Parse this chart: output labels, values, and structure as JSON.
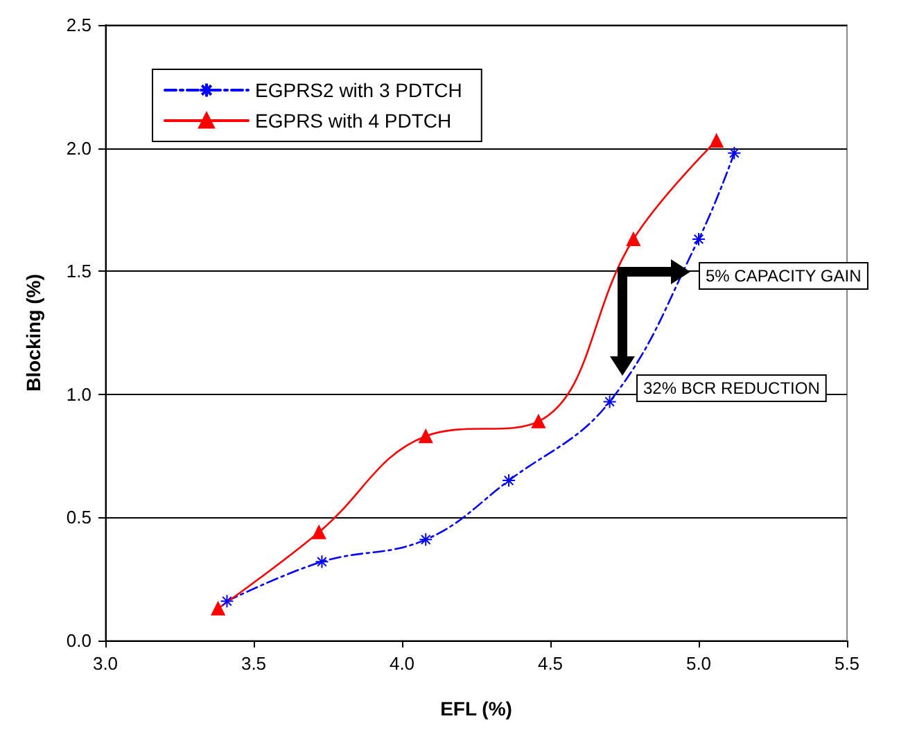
{
  "chart_data": {
    "type": "line",
    "xlabel": "EFL (%)",
    "ylabel": "Blocking (%)",
    "xlim": [
      3.0,
      5.5
    ],
    "xticks": [
      {
        "value": 3,
        "label": "3.0"
      },
      3.5,
      {
        "value": 4,
        "label": "4.0"
      },
      4.5,
      {
        "value": 5,
        "label": "5.0"
      },
      5.5
    ],
    "ylim": [
      0,
      2.5
    ],
    "yticks": [
      {
        "value": 0,
        "label": "0.0"
      },
      0.5,
      {
        "value": 1,
        "label": "1.0"
      },
      1.5,
      {
        "value": 2,
        "label": "2.0"
      },
      2.5
    ],
    "grid": "y",
    "legend": "top left",
    "series": [
      {
        "name": "EGPRS2 with 3 PDTCH",
        "color": "#0000ff",
        "marker": "cross",
        "line_style": "dashed",
        "x": [
          3.41,
          3.73,
          4.08,
          4.36,
          4.7,
          5.0,
          5.12
        ],
        "values": [
          0.16,
          0.32,
          0.41,
          0.65,
          0.97,
          1.63,
          1.98
        ]
      },
      {
        "name": "EGPRS with 4 PDTCH",
        "color": "#ff0000",
        "marker": "triangle",
        "line_style": "solid",
        "x": [
          3.38,
          3.72,
          4.08,
          4.46,
          4.78,
          5.06
        ],
        "values": [
          0.13,
          0.44,
          0.83,
          0.89,
          1.63,
          2.03
        ]
      }
    ],
    "annotations": [
      "5% CAPACITY GAIN",
      "32% BCR REDUCTION"
    ]
  }
}
